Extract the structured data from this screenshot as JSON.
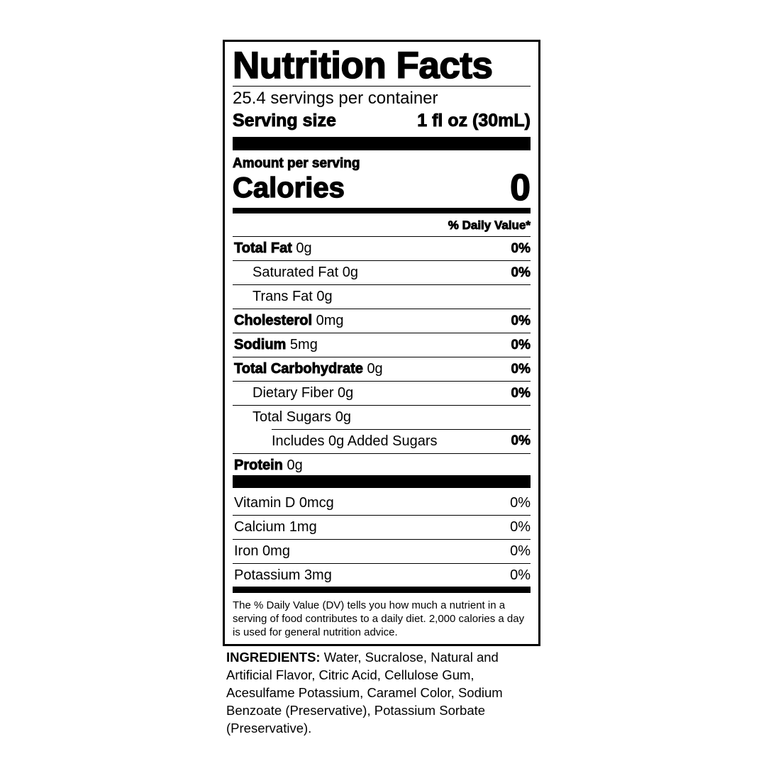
{
  "title": "Nutrition Facts",
  "servings_per_container": "25.4 servings per container",
  "serving_size_label": "Serving size",
  "serving_size_value": "1 fl oz (30mL)",
  "amount_per_serving": "Amount per serving",
  "calories_label": "Calories",
  "calories_value": "0",
  "daily_value_header": "% Daily Value*",
  "nutrients": [
    {
      "name": "Total Fat",
      "amount": "0g",
      "dv": "0%",
      "bold": true,
      "indent": 0
    },
    {
      "name": "Saturated Fat",
      "amount": "0g",
      "dv": "0%",
      "bold": false,
      "indent": 1
    },
    {
      "name": "Trans Fat",
      "amount": "0g",
      "dv": "",
      "bold": false,
      "indent": 1
    },
    {
      "name": "Cholesterol",
      "amount": "0mg",
      "dv": "0%",
      "bold": true,
      "indent": 0
    },
    {
      "name": "Sodium",
      "amount": "5mg",
      "dv": "0%",
      "bold": true,
      "indent": 0
    },
    {
      "name": "Total Carbohydrate",
      "amount": "0g",
      "dv": "0%",
      "bold": true,
      "indent": 0
    },
    {
      "name": "Dietary Fiber",
      "amount": "0g",
      "dv": "0%",
      "bold": false,
      "indent": 1
    },
    {
      "name": "Total Sugars",
      "amount": "0g",
      "dv": "",
      "bold": false,
      "indent": 1
    },
    {
      "name": "Includes 0g Added Sugars",
      "amount": "",
      "dv": "0%",
      "bold": false,
      "indent": 2
    },
    {
      "name": "Protein",
      "amount": "0g",
      "dv": "",
      "bold": true,
      "indent": 0
    }
  ],
  "vitamins": [
    {
      "name": "Vitamin D",
      "amount": "0mcg",
      "dv": "0%"
    },
    {
      "name": "Calcium",
      "amount": "1mg",
      "dv": "0%"
    },
    {
      "name": "Iron",
      "amount": "0mg",
      "dv": "0%"
    },
    {
      "name": "Potassium",
      "amount": "3mg",
      "dv": "0%"
    }
  ],
  "footnote": "The % Daily Value (DV) tells you how much a nutrient in a serving of food contributes to a daily diet. 2,000 calories a day is used for general nutrition advice.",
  "ingredients_label": "INGREDIENTS:",
  "ingredients_text": "Water, Sucralose, Natural and Artificial Flavor, Citric Acid, Cellulose Gum, Acesulfame Potassium, Caramel Color, Sodium Benzoate (Preservative), Potassium Sorbate (Preservative)."
}
